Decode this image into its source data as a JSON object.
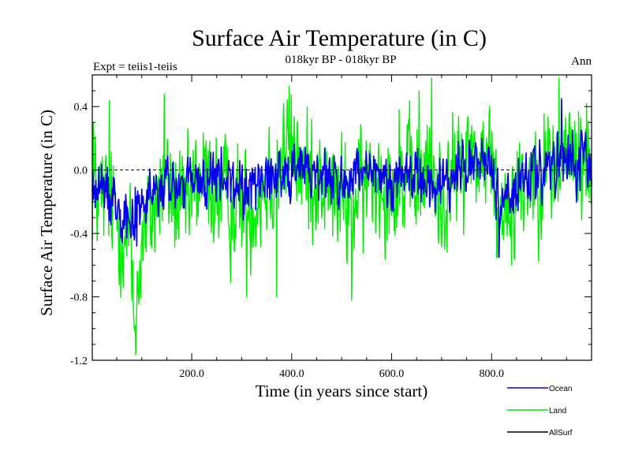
{
  "chart_data": {
    "type": "line",
    "title": "Surface Air Temperature (in C)",
    "subtitle": "018kyr BP - 018kyr BP",
    "left_label": "Expt = teiis1-teiis",
    "right_label": "Ann",
    "xlabel": "Time (in years since start)",
    "ylabel": "Surface Air Temperature (in C)",
    "xlim": [
      1,
      1000
    ],
    "ylim": [
      -1.2,
      0.6
    ],
    "x_ticks": [
      200,
      400,
      600,
      800
    ],
    "x_tick_labels": [
      "200.0",
      "400.0",
      "600.0",
      "800.0"
    ],
    "y_ticks": [
      -1.2,
      -0.8,
      -0.4,
      0.0,
      0.4
    ],
    "y_tick_labels": [
      "-1.2",
      "-0.8",
      "-0.4",
      "0.0",
      "0.4"
    ],
    "zero_line": true,
    "grid": false,
    "legend_position": "bottom-right, outside plot",
    "series": [
      {
        "name": "Land",
        "color": "#00ee00",
        "anchors_x": [
          1,
          30,
          50,
          80,
          85,
          100,
          145,
          180,
          220,
          260,
          310,
          345,
          375,
          400,
          430,
          470,
          520,
          560,
          600,
          640,
          675,
          700,
          720,
          760,
          800,
          815,
          830,
          870,
          900,
          935,
          960,
          1000
        ],
        "anchors_y": [
          -0.12,
          -0.2,
          -0.3,
          -0.5,
          -1.0,
          -0.45,
          -0.05,
          -0.28,
          -0.05,
          -0.18,
          -0.25,
          -0.1,
          0.05,
          0.15,
          -0.05,
          -0.1,
          -0.25,
          -0.05,
          -0.05,
          -0.1,
          0.0,
          -0.2,
          -0.05,
          0.1,
          0.05,
          -0.3,
          -0.18,
          -0.05,
          0.0,
          0.05,
          0.1,
          0.0
        ],
        "amplitude": 0.25,
        "peaks": [
          [
            3,
            0.3
          ],
          [
            35,
            0.44
          ],
          [
            85,
            -1.0
          ],
          [
            80,
            -0.82
          ],
          [
            145,
            0.48
          ],
          [
            310,
            -0.8
          ],
          [
            370,
            -0.8
          ],
          [
            395,
            0.53
          ],
          [
            440,
            0.32
          ],
          [
            520,
            -0.82
          ],
          [
            615,
            0.38
          ],
          [
            655,
            0.5
          ],
          [
            680,
            0.58
          ],
          [
            760,
            0.28
          ],
          [
            810,
            -0.55
          ],
          [
            840,
            -0.6
          ],
          [
            935,
            0.58
          ],
          [
            990,
            0.42
          ]
        ]
      },
      {
        "name": "Ocean",
        "color": "#0000ee",
        "anchors_x": [
          1,
          40,
          80,
          100,
          150,
          200,
          250,
          300,
          350,
          400,
          450,
          500,
          550,
          600,
          650,
          700,
          720,
          760,
          800,
          815,
          830,
          880,
          930,
          960,
          1000
        ],
        "anchors_y": [
          -0.12,
          -0.15,
          -0.3,
          -0.22,
          -0.1,
          -0.1,
          -0.05,
          -0.12,
          -0.05,
          0.02,
          -0.02,
          -0.08,
          -0.05,
          -0.05,
          -0.02,
          -0.12,
          -0.05,
          0.05,
          0.02,
          -0.25,
          -0.15,
          -0.05,
          0.02,
          0.05,
          0.0
        ],
        "amplitude": 0.12,
        "peaks": [
          [
            940,
            0.45
          ],
          [
            815,
            -0.55
          ],
          [
            90,
            -0.48
          ]
        ]
      },
      {
        "name": "AllSurf",
        "color": "#000000",
        "values": []
      }
    ]
  }
}
